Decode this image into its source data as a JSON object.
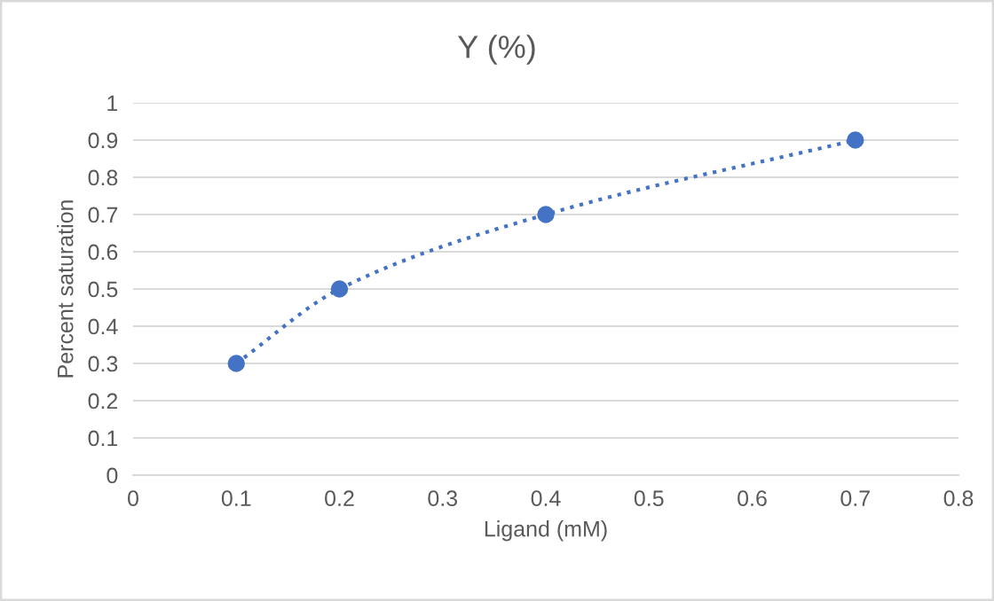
{
  "chart_data": {
    "type": "line",
    "title": "Y (%)",
    "xlabel": "Ligand (mM)",
    "ylabel": "Percent saturation",
    "x": [
      0.1,
      0.2,
      0.4,
      0.7
    ],
    "series": [
      {
        "color": "#4472c4",
        "values": [
          0.3,
          0.5,
          0.7,
          0.9
        ]
      }
    ],
    "marker": "circle",
    "line_style": "dotted",
    "grid": "y",
    "xlim": [
      0,
      0.8
    ],
    "xticks": [
      0,
      0.1,
      0.2,
      0.3,
      0.4,
      0.5,
      0.6,
      0.7,
      0.8
    ],
    "ylim": [
      0,
      1
    ],
    "yticks": [
      0,
      0.1,
      0.2,
      0.3,
      0.4,
      0.5,
      0.6,
      0.7,
      0.8,
      0.9,
      1
    ]
  }
}
